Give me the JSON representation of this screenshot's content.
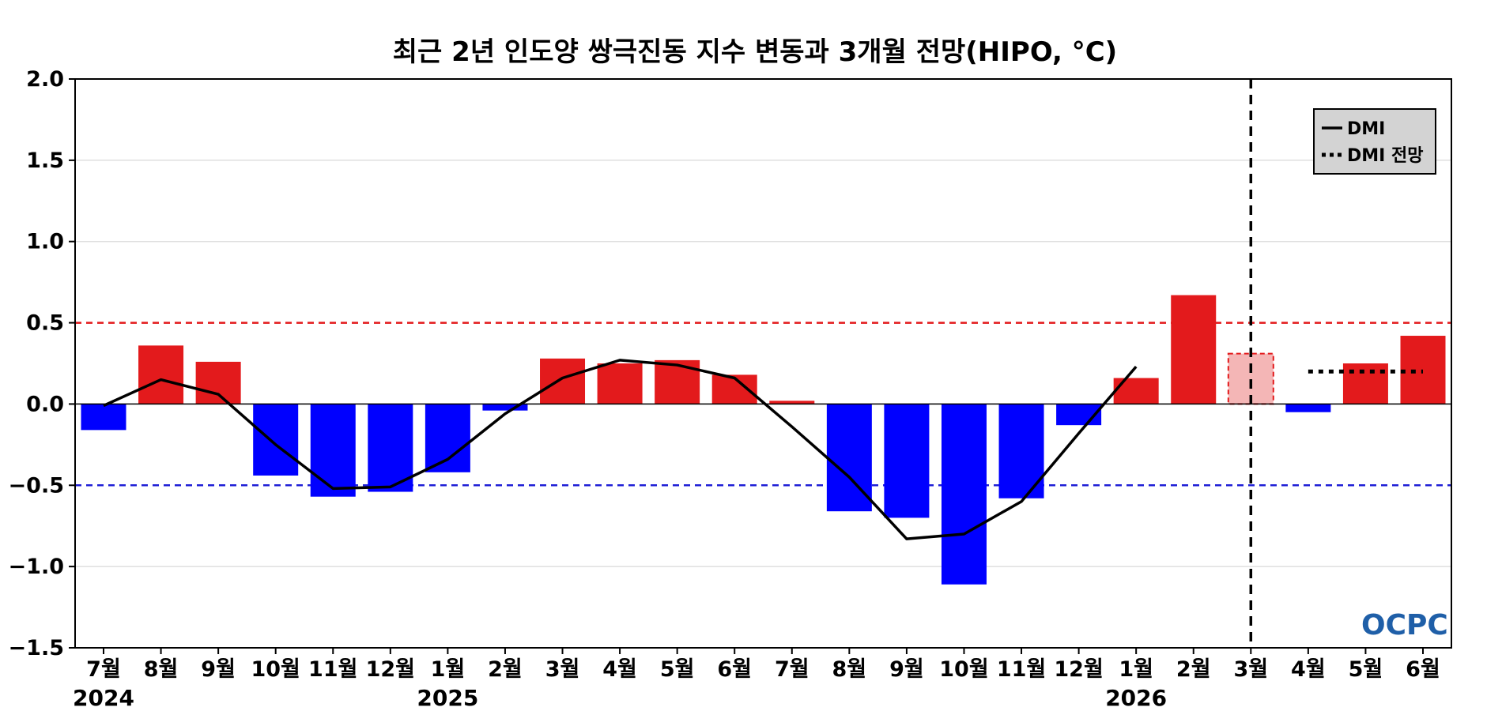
{
  "chart_data": {
    "type": "bar",
    "title": "최근 2년 인도양 쌍극진동 지수 변동과 3개월 전망(HIPO, °C)",
    "categories": [
      "7월",
      "8월",
      "9월",
      "10월",
      "11월",
      "12월",
      "1월",
      "2월",
      "3월",
      "4월",
      "5월",
      "6월",
      "7월",
      "8월",
      "9월",
      "10월",
      "11월",
      "12월",
      "1월",
      "2월",
      "3월",
      "4월",
      "5월",
      "6월"
    ],
    "year_labels": [
      {
        "text": "2024",
        "category_index": 0
      },
      {
        "text": "2025",
        "category_index": 6
      },
      {
        "text": "2026",
        "category_index": 18
      }
    ],
    "values": [
      -0.16,
      0.36,
      0.26,
      -0.44,
      -0.57,
      -0.54,
      -0.42,
      -0.04,
      0.28,
      0.25,
      0.27,
      0.18,
      0.02,
      -0.66,
      -0.7,
      -1.11,
      -0.58,
      -0.13,
      0.16,
      0.67,
      0.31,
      -0.05,
      0.25,
      0.42
    ],
    "forecast_bar_index": 20,
    "dmi_line": [
      -0.01,
      0.15,
      0.06,
      -0.25,
      -0.52,
      -0.51,
      -0.34,
      -0.06,
      0.16,
      0.27,
      0.24,
      0.16,
      -0.14,
      -0.45,
      -0.83,
      -0.8,
      -0.6,
      -0.18,
      0.23
    ],
    "dmi_forecast": {
      "start_index": 21,
      "end_index": 23,
      "value": 0.2
    },
    "ylim": [
      -1.5,
      2.0
    ],
    "yticks": [
      2.0,
      1.5,
      1.0,
      0.5,
      0.0,
      -0.5,
      -1.0,
      -1.5
    ],
    "ytick_labels": [
      "2.0",
      "1.5",
      "1.0",
      "0.5",
      "0.0",
      "−0.5",
      "−1.0",
      "−1.5"
    ],
    "thresholds": {
      "positive": 0.5,
      "negative": -0.5
    },
    "vline_index": 20,
    "grid": true,
    "legend": {
      "position": "top-right",
      "items": [
        {
          "label": "DMI",
          "style": "solid"
        },
        {
          "label": "DMI 전망",
          "style": "dotted"
        }
      ]
    },
    "colors": {
      "positive": "#e31a1c",
      "negative": "#0000ff",
      "forecast_fill": "#f4b6b6",
      "forecast_edge": "#e31a1c",
      "line": "#000000",
      "grid": "#d9d9d9",
      "pos_threshold": "#e31a1c",
      "neg_threshold": "#1f1fd6",
      "legend_bg": "#d3d3d3"
    }
  },
  "logo": {
    "text": "OCPC",
    "colors": [
      "#1f5fa8",
      "#5fc3e4"
    ]
  }
}
